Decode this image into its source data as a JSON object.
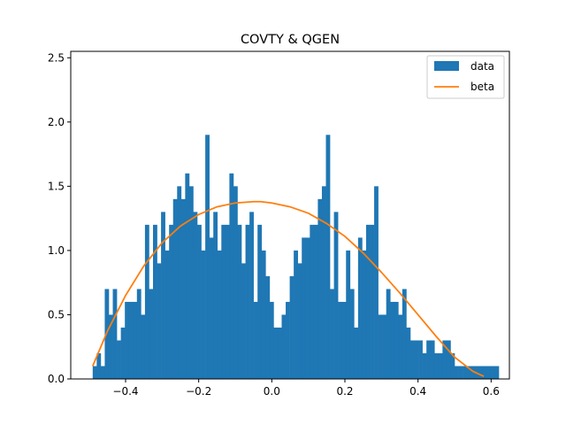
{
  "chart_data": {
    "type": "bar",
    "title": "COVTY & QGEN",
    "xlabel": "",
    "ylabel": "",
    "xlim": [
      -0.55,
      0.65
    ],
    "ylim": [
      0,
      2.55
    ],
    "x_ticks": [
      -0.4,
      -0.2,
      0.0,
      0.2,
      0.4,
      0.6
    ],
    "x_tick_labels": [
      "−0.4",
      "−0.2",
      "0.0",
      "0.2",
      "0.4",
      "0.6"
    ],
    "y_ticks": [
      0.0,
      0.5,
      1.0,
      1.5,
      2.0,
      2.5
    ],
    "y_tick_labels": [
      "0.0",
      "0.5",
      "1.0",
      "1.5",
      "2.0",
      "2.5"
    ],
    "legend_position": "top-right",
    "series": [
      {
        "name": "data",
        "kind": "histogram",
        "color": "#1f77b4",
        "bin_start": -0.49,
        "bin_width": 0.011,
        "values": [
          0.1,
          0.2,
          0.1,
          0.7,
          0.5,
          0.7,
          0.3,
          0.4,
          0.6,
          0.6,
          0.6,
          0.7,
          0.5,
          1.2,
          0.7,
          1.2,
          0.9,
          1.3,
          1.0,
          1.2,
          1.4,
          1.5,
          1.4,
          1.6,
          1.5,
          1.3,
          1.2,
          1.0,
          1.9,
          1.1,
          1.3,
          1.0,
          1.2,
          1.2,
          1.6,
          1.5,
          1.2,
          0.9,
          1.2,
          1.3,
          0.6,
          1.2,
          1.0,
          0.8,
          0.6,
          0.4,
          0.4,
          0.5,
          0.6,
          0.8,
          1.0,
          0.9,
          1.1,
          1.1,
          1.2,
          1.2,
          1.4,
          1.5,
          1.9,
          0.7,
          1.3,
          0.6,
          0.6,
          1.0,
          0.7,
          0.4,
          1.1,
          1.0,
          1.2,
          1.2,
          1.5,
          0.5,
          0.5,
          0.7,
          0.6,
          0.6,
          0.5,
          0.7,
          0.4,
          0.3,
          0.3,
          0.3,
          0.2,
          0.3,
          0.3,
          0.2,
          0.2,
          0.3,
          0.3,
          0.2,
          0.1,
          0.1,
          0.1,
          0.1,
          0.1,
          0.1,
          0.1,
          0.1,
          0.1,
          0.1,
          0.1
        ]
      },
      {
        "name": "beta",
        "kind": "line",
        "color": "#ff7f0e",
        "x": [
          -0.49,
          -0.45,
          -0.4,
          -0.35,
          -0.3,
          -0.25,
          -0.2,
          -0.15,
          -0.1,
          -0.05,
          -0.03,
          0.0,
          0.05,
          0.1,
          0.15,
          0.2,
          0.25,
          0.3,
          0.35,
          0.4,
          0.45,
          0.5,
          0.55,
          0.58
        ],
        "y": [
          0.1,
          0.37,
          0.65,
          0.88,
          1.06,
          1.19,
          1.28,
          1.34,
          1.37,
          1.38,
          1.38,
          1.37,
          1.34,
          1.29,
          1.21,
          1.11,
          0.98,
          0.83,
          0.67,
          0.5,
          0.33,
          0.17,
          0.06,
          0.02
        ]
      }
    ]
  }
}
